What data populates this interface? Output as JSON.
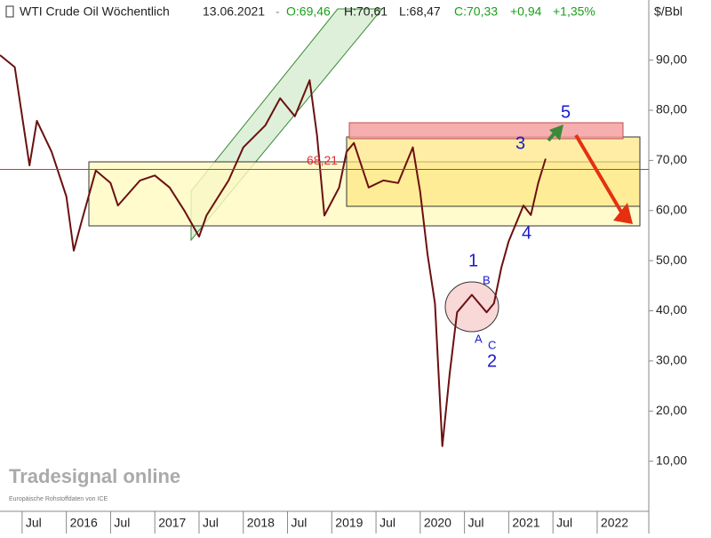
{
  "chart_data": {
    "type": "line",
    "title": "WTI Crude Oil Wöchentlich",
    "date": "13.06.2021",
    "quote": {
      "open": "O:69,46",
      "high": "H:70,61",
      "low": "L:68,47",
      "close": "C:70,33",
      "change": "+0,94",
      "change_pct": "+1,35%"
    },
    "unit": "$/Bbl",
    "brand": "Tradesignal online",
    "source": "Europäische Rohstoffdaten von ICE",
    "last_line": {
      "value": 68.21,
      "label": "68,21",
      "color": "#e03030"
    },
    "wave_labels": [
      "1",
      "2",
      "3",
      "4",
      "5",
      "A",
      "B",
      "C"
    ],
    "x": [
      "2015-04",
      "2015-06",
      "2015-07",
      "2015-08",
      "2015-09",
      "2015-11",
      "2016-01",
      "2016-02",
      "2016-03",
      "2016-05",
      "2016-07",
      "2016-08",
      "2016-11",
      "2017-01",
      "2017-03",
      "2017-05",
      "2017-07",
      "2017-08",
      "2017-11",
      "2018-01",
      "2018-04",
      "2018-06",
      "2018-08",
      "2018-10",
      "2018-11",
      "2018-12",
      "2019-02",
      "2019-03",
      "2019-04",
      "2019-06",
      "2019-08",
      "2019-10",
      "2019-12",
      "2020-01",
      "2020-02",
      "2020-03",
      "2020-04",
      "2020-05",
      "2020-06",
      "2020-08",
      "2020-10",
      "2020-11",
      "2020-12",
      "2021-01",
      "2021-03",
      "2021-04",
      "2021-05",
      "2021-06"
    ],
    "series": [
      {
        "name": "WTI Crude Oil",
        "color": "#6b1010",
        "values": [
          91,
          88.6,
          78.8,
          69,
          77.9,
          71.7,
          62.8,
          52,
          57.5,
          68,
          65.5,
          61,
          66,
          67,
          64.6,
          60,
          54.8,
          59,
          66,
          72.6,
          77,
          82.4,
          78.8,
          86,
          75,
          59,
          64.6,
          71.7,
          73.5,
          64.6,
          66,
          65.5,
          72.6,
          63.7,
          51.2,
          41.5,
          13,
          27.5,
          39.7,
          43.2,
          39.7,
          41.5,
          48.6,
          53.9,
          61,
          59.1,
          65.5,
          70.33
        ]
      }
    ],
    "xlim": [
      "2015-04",
      "2022-08"
    ],
    "xticks": [
      {
        "value": "2015-07",
        "label": "Jul"
      },
      {
        "value": "2016-01",
        "label": "2016"
      },
      {
        "value": "2016-07",
        "label": "Jul"
      },
      {
        "value": "2017-01",
        "label": "2017"
      },
      {
        "value": "2017-07",
        "label": "Jul"
      },
      {
        "value": "2018-01",
        "label": "2018"
      },
      {
        "value": "2018-07",
        "label": "Jul"
      },
      {
        "value": "2019-01",
        "label": "2019"
      },
      {
        "value": "2019-07",
        "label": "Jul"
      },
      {
        "value": "2020-01",
        "label": "2020"
      },
      {
        "value": "2020-07",
        "label": "Jul"
      },
      {
        "value": "2021-01",
        "label": "2021"
      },
      {
        "value": "2021-07",
        "label": "Jul"
      },
      {
        "value": "2022-01",
        "label": "2022"
      }
    ],
    "ylim": [
      0,
      102
    ],
    "yticks": [
      {
        "value": 10,
        "label": "10,00"
      },
      {
        "value": 20,
        "label": "20,00"
      },
      {
        "value": 30,
        "label": "30,00"
      },
      {
        "value": 40,
        "label": "40,00"
      },
      {
        "value": 50,
        "label": "50,00"
      },
      {
        "value": 60,
        "label": "60,00"
      },
      {
        "value": 70,
        "label": "70,00"
      },
      {
        "value": 80,
        "label": "80,00"
      },
      {
        "value": 90,
        "label": "90,00"
      }
    ]
  }
}
